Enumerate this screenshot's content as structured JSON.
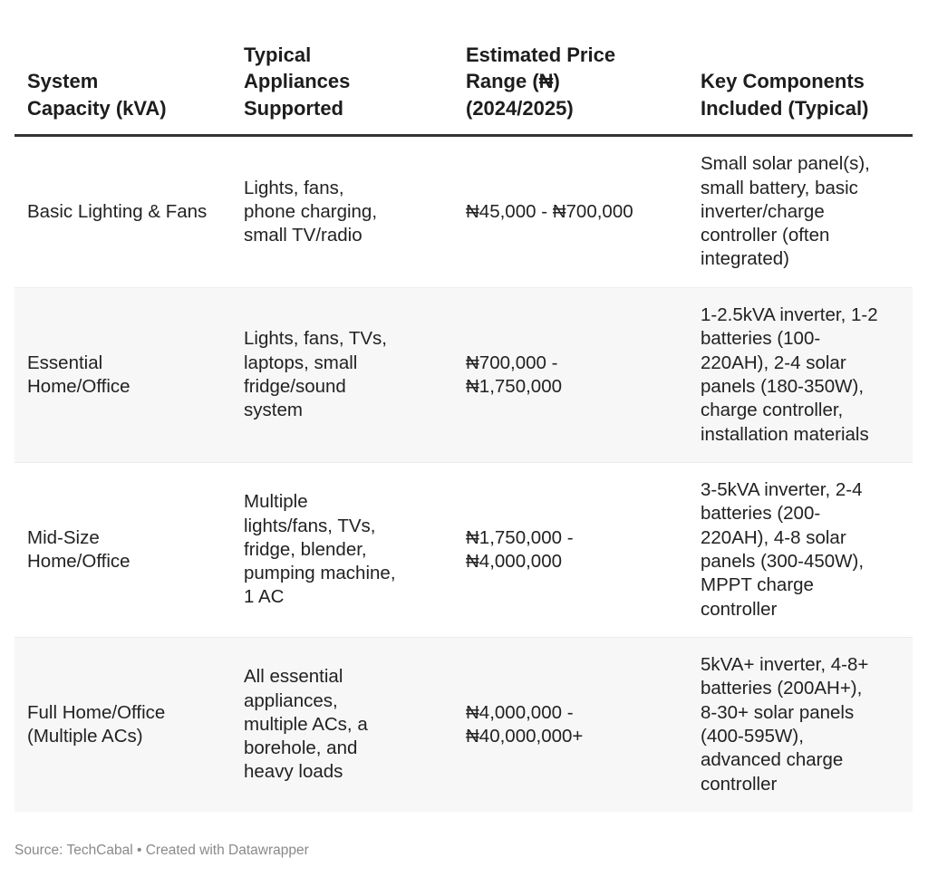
{
  "chart_data": {
    "type": "table",
    "columns": [
      "System Capacity (kVA)",
      "Typical Appliances Supported",
      "Estimated Price Range (₦) (2024/2025)",
      "Key Components Included (Typical)"
    ],
    "rows": [
      {
        "capacity": "Basic Lighting & Fans",
        "appliances": "Lights, fans,\nphone charging,\nsmall TV/radio",
        "price": "₦45,000 - ₦700,000",
        "components": "Small solar panel(s),\nsmall battery, basic\ninverter/charge\ncontroller (often\nintegrated)"
      },
      {
        "capacity": "Essential\nHome/Office",
        "appliances": "Lights, fans, TVs,\nlaptops, small\nfridge/sound\nsystem",
        "price": "₦700,000 -\n₦1,750,000",
        "components": "1-2.5kVA inverter, 1-2\nbatteries (100-\n220AH), 2-4 solar\npanels (180-350W),\ncharge controller,\ninstallation materials"
      },
      {
        "capacity": "Mid-Size\nHome/Office",
        "appliances": "Multiple\nlights/fans, TVs,\nfridge, blender,\npumping machine,\n1 AC",
        "price": "₦1,750,000 -\n₦4,000,000",
        "components": "3-5kVA inverter, 2-4\nbatteries (200-\n220AH), 4-8 solar\npanels (300-450W),\nMPPT charge\ncontroller"
      },
      {
        "capacity": "Full Home/Office\n(Multiple ACs)",
        "appliances": "All essential\nappliances,\nmultiple ACs, a\nborehole, and\nheavy loads",
        "price": "₦4,000,000 -\n₦40,000,000+",
        "components": "5kVA+ inverter, 4-8+\nbatteries (200AH+),\n8-30+ solar panels\n(400-595W),\nadvanced charge\ncontroller"
      }
    ],
    "striped_rows": true,
    "stripe_color": "#f7f7f7",
    "header_border_color": "#333333"
  },
  "header": {
    "col1": "System\nCapacity (kVA)",
    "col2": "Typical\nAppliances\nSupported",
    "col3": "Estimated Price\nRange (₦)\n(2024/2025)",
    "col4": "Key Components\nIncluded (Typical)"
  },
  "footer": {
    "text": "Source: TechCabal • Created with Datawrapper"
  }
}
